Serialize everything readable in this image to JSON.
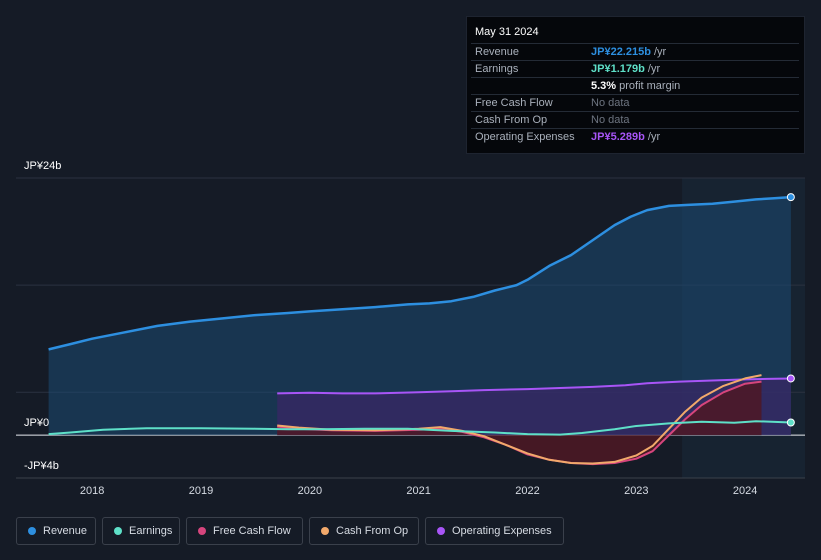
{
  "tooltip": {
    "date": "May 31 2024",
    "rows": [
      {
        "label": "Revenue",
        "value": "JP¥22.215b",
        "unit": " /yr",
        "color": "#2d8fe0"
      },
      {
        "label": "Earnings",
        "value": "JP¥1.179b",
        "unit": " /yr",
        "color": "#5ee0c8"
      },
      {
        "label": "",
        "value": "5.3%",
        "unit": " profit margin",
        "color": "#ffffff"
      },
      {
        "label": "Free Cash Flow",
        "value": "No data",
        "unit": "",
        "color": "#6d7480"
      },
      {
        "label": "Cash From Op",
        "value": "No data",
        "unit": "",
        "color": "#6d7480"
      },
      {
        "label": "Operating Expenses",
        "value": "JP¥5.289b",
        "unit": " /yr",
        "color": "#a855f7"
      }
    ]
  },
  "chart_data": {
    "type": "area",
    "y_axis_labels": {
      "top": "JP¥24b",
      "zero": "JP¥0",
      "bottom": "-JP¥4b"
    },
    "ylim": [
      -4,
      24
    ],
    "xlim": [
      2017.3,
      2024.55
    ],
    "x_ticks": [
      "2018",
      "2019",
      "2020",
      "2021",
      "2022",
      "2023",
      "2024"
    ],
    "x_tick_values": [
      2018,
      2019,
      2020,
      2021,
      2022,
      2023,
      2024
    ],
    "forecast_start": 2023.42,
    "series": [
      {
        "name": "Revenue",
        "color": "#2d8fe0",
        "fill": "#1b4a72",
        "x": [
          2017.6,
          2017.8,
          2018.0,
          2018.3,
          2018.6,
          2018.9,
          2019.2,
          2019.5,
          2019.8,
          2020.0,
          2020.3,
          2020.6,
          2020.9,
          2021.1,
          2021.3,
          2021.5,
          2021.7,
          2021.9,
          2022.0,
          2022.2,
          2022.4,
          2022.6,
          2022.8,
          2022.95,
          2023.1,
          2023.3,
          2023.5,
          2023.7,
          2023.9,
          2024.1,
          2024.25,
          2024.42
        ],
        "values": [
          8.0,
          8.5,
          9.0,
          9.6,
          10.2,
          10.6,
          10.9,
          11.2,
          11.4,
          11.55,
          11.75,
          11.95,
          12.2,
          12.3,
          12.5,
          12.9,
          13.5,
          14.0,
          14.5,
          15.8,
          16.8,
          18.2,
          19.6,
          20.4,
          21.0,
          21.4,
          21.5,
          21.6,
          21.8,
          22.0,
          22.1,
          22.215
        ]
      },
      {
        "name": "Earnings",
        "color": "#5ee0c8",
        "x": [
          2017.6,
          2017.8,
          2018.1,
          2018.5,
          2019.0,
          2019.5,
          2019.8,
          2020.1,
          2020.5,
          2020.9,
          2021.3,
          2021.7,
          2022.0,
          2022.3,
          2022.5,
          2022.8,
          2023.0,
          2023.3,
          2023.6,
          2023.9,
          2024.1,
          2024.42
        ],
        "values": [
          0.1,
          0.25,
          0.5,
          0.65,
          0.65,
          0.6,
          0.55,
          0.55,
          0.6,
          0.6,
          0.4,
          0.25,
          0.1,
          0.05,
          0.2,
          0.55,
          0.85,
          1.1,
          1.25,
          1.15,
          1.3,
          1.179
        ]
      },
      {
        "name": "Free Cash Flow",
        "color": "#d6457d",
        "fill": "#4d1725",
        "x": [
          2019.7,
          2019.9,
          2020.2,
          2020.6,
          2021.0,
          2021.2,
          2021.4,
          2021.6,
          2021.8,
          2022.0,
          2022.2,
          2022.4,
          2022.6,
          2022.8,
          2023.0,
          2023.15,
          2023.3,
          2023.45,
          2023.6,
          2023.8,
          2024.0,
          2024.15
        ],
        "values": [
          0.8,
          0.6,
          0.45,
          0.4,
          0.5,
          0.6,
          0.3,
          -0.2,
          -0.9,
          -1.8,
          -2.3,
          -2.6,
          -2.7,
          -2.6,
          -2.2,
          -1.5,
          0.0,
          1.5,
          2.8,
          4.0,
          4.8,
          5.0
        ]
      },
      {
        "name": "Cash From Op",
        "color": "#f2a96b",
        "x": [
          2019.7,
          2019.9,
          2020.2,
          2020.6,
          2021.0,
          2021.2,
          2021.4,
          2021.6,
          2021.8,
          2022.0,
          2022.2,
          2022.4,
          2022.6,
          2022.8,
          2023.0,
          2023.15,
          2023.3,
          2023.45,
          2023.6,
          2023.8,
          2024.0,
          2024.15
        ],
        "values": [
          0.9,
          0.7,
          0.5,
          0.45,
          0.6,
          0.75,
          0.4,
          -0.1,
          -0.9,
          -1.7,
          -2.3,
          -2.6,
          -2.65,
          -2.5,
          -1.9,
          -1.0,
          0.6,
          2.2,
          3.5,
          4.6,
          5.3,
          5.6
        ]
      },
      {
        "name": "Operating Expenses",
        "color": "#a855f7",
        "fill": "#3b2766",
        "x": [
          2019.7,
          2020.0,
          2020.3,
          2020.6,
          2021.0,
          2021.3,
          2021.6,
          2022.0,
          2022.3,
          2022.6,
          2022.9,
          2023.1,
          2023.4,
          2023.7,
          2024.0,
          2024.2,
          2024.42
        ],
        "values": [
          3.9,
          3.95,
          3.9,
          3.9,
          4.0,
          4.1,
          4.2,
          4.3,
          4.4,
          4.5,
          4.65,
          4.85,
          5.0,
          5.1,
          5.2,
          5.25,
          5.289
        ]
      }
    ]
  },
  "legend": [
    {
      "label": "Revenue",
      "color": "#2d8fe0"
    },
    {
      "label": "Earnings",
      "color": "#5ee0c8"
    },
    {
      "label": "Free Cash Flow",
      "color": "#d6457d"
    },
    {
      "label": "Cash From Op",
      "color": "#f2a96b"
    },
    {
      "label": "Operating Expenses",
      "color": "#a855f7"
    }
  ]
}
